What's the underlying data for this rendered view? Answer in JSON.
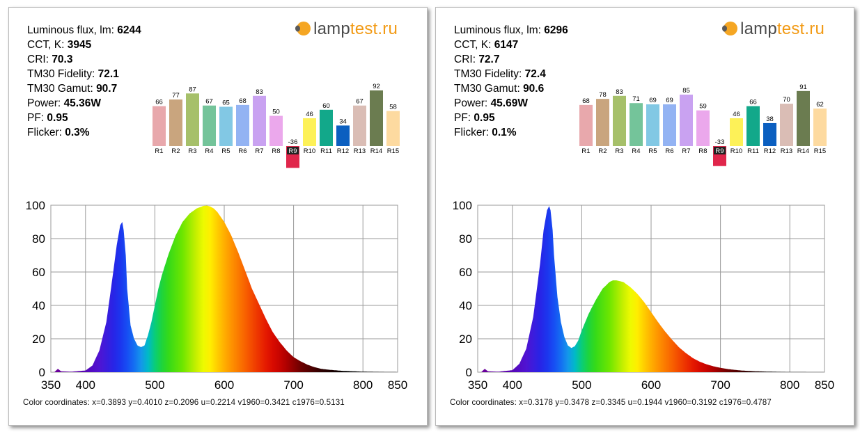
{
  "logo": {
    "part1": "lamp",
    "part2": "test.ru",
    "lamp_color": "#f5a623",
    "text_color": "#4a4a4a",
    "accent": "#f29a14"
  },
  "cri_labels": [
    "R1",
    "R2",
    "R3",
    "R4",
    "R5",
    "R6",
    "R7",
    "R8",
    "R9",
    "R10",
    "R11",
    "R12",
    "R13",
    "R14",
    "R15"
  ],
  "cri_colors": [
    "#e8a8ac",
    "#c9a57e",
    "#a6c06a",
    "#74c49a",
    "#82c8e4",
    "#93b3f3",
    "#c9a2f1",
    "#eba8ec",
    "#e0264b",
    "#fdf158",
    "#12a88a",
    "#0b5fc0",
    "#dabdb5",
    "#6b7c50",
    "#fddaa0"
  ],
  "panels": [
    {
      "stats": [
        {
          "label": "Luminous flux, lm: ",
          "value": "6244"
        },
        {
          "label": "CCT, K: ",
          "value": "3945"
        },
        {
          "label": "CRI: ",
          "value": "70.3"
        },
        {
          "label": "TM30 Fidelity: ",
          "value": "72.1"
        },
        {
          "label": "TM30 Gamut: ",
          "value": "90.7"
        },
        {
          "label": "Power:  ",
          "value": "45.36W"
        },
        {
          "label": "PF:  ",
          "value": "0.95"
        },
        {
          "label": "Flicker:  ",
          "value": "0.3%"
        }
      ],
      "cri_values": [
        66,
        77,
        87,
        67,
        65,
        68,
        83,
        50,
        -36,
        46,
        60,
        34,
        67,
        92,
        58
      ],
      "coordinates": "Color coordinates: x=0.3893 y=0.4010 z=0.2096 u=0.2214 v1960=0.3421 c1976=0.5131",
      "chart_data": {
        "type": "area",
        "xlim": [
          350,
          850
        ],
        "ylim": [
          0,
          100
        ],
        "xticks": [
          350,
          400,
          500,
          600,
          700,
          800,
          850
        ],
        "yticks": [
          0,
          20,
          40,
          60,
          80,
          100
        ],
        "grid": true,
        "x": [
          355,
          360,
          365,
          380,
          400,
          410,
          420,
          430,
          440,
          445,
          450,
          453,
          455,
          458,
          460,
          465,
          470,
          475,
          480,
          485,
          490,
          495,
          500,
          505,
          510,
          520,
          530,
          540,
          550,
          560,
          570,
          575,
          580,
          585,
          590,
          600,
          610,
          620,
          630,
          640,
          650,
          660,
          670,
          680,
          690,
          700,
          710,
          720,
          730,
          740,
          750,
          770,
          800,
          850
        ],
        "y": [
          0,
          2,
          0.5,
          0.3,
          1,
          4,
          13,
          30,
          60,
          76,
          88,
          90,
          85,
          70,
          50,
          28,
          20,
          16,
          15,
          16,
          22,
          30,
          40,
          50,
          58,
          71,
          82,
          90,
          95,
          98,
          99.6,
          99.8,
          99.2,
          98,
          96,
          90,
          82,
          72,
          61,
          50,
          41,
          32,
          24,
          18,
          13,
          9,
          6.5,
          4.5,
          3,
          2,
          1.5,
          0.8,
          0.3,
          0.05
        ]
      }
    },
    {
      "stats": [
        {
          "label": "Luminous flux, lm: ",
          "value": "6296"
        },
        {
          "label": "CCT, K: ",
          "value": "6147"
        },
        {
          "label": "CRI: ",
          "value": "72.7"
        },
        {
          "label": "TM30 Fidelity: ",
          "value": "72.4"
        },
        {
          "label": "TM30 Gamut: ",
          "value": "90.6"
        },
        {
          "label": "Power:  ",
          "value": "45.69W"
        },
        {
          "label": "PF:  ",
          "value": "0.95"
        },
        {
          "label": "Flicker:  ",
          "value": "0.1%"
        }
      ],
      "cri_values": [
        68,
        78,
        83,
        71,
        69,
        69,
        85,
        59,
        -33,
        46,
        66,
        38,
        70,
        91,
        62
      ],
      "coordinates": "Color coordinates: x=0.3178 y=0.3478 z=0.3345 u=0.1944 v1960=0.3192 c1976=0.4787",
      "chart_data": {
        "type": "area",
        "xlim": [
          350,
          850
        ],
        "ylim": [
          0,
          100
        ],
        "xticks": [
          350,
          400,
          500,
          600,
          700,
          800,
          850
        ],
        "yticks": [
          0,
          20,
          40,
          60,
          80,
          100
        ],
        "grid": true,
        "x": [
          355,
          360,
          365,
          380,
          400,
          410,
          420,
          430,
          440,
          445,
          450,
          453,
          455,
          458,
          460,
          465,
          470,
          475,
          480,
          485,
          490,
          495,
          500,
          510,
          520,
          530,
          540,
          545,
          550,
          555,
          560,
          570,
          580,
          590,
          600,
          610,
          620,
          630,
          640,
          650,
          660,
          670,
          680,
          690,
          700,
          710,
          720,
          730,
          740,
          750,
          770,
          800,
          850
        ],
        "y": [
          0,
          2,
          0.5,
          0.3,
          1.2,
          5,
          14,
          33,
          65,
          85,
          97,
          99.5,
          97,
          85,
          70,
          45,
          30,
          21,
          16,
          14.5,
          15.5,
          19,
          25,
          35,
          43,
          50,
          54,
          55,
          55,
          54.5,
          54,
          51,
          47,
          42,
          36,
          30,
          24.5,
          19.5,
          15,
          11.5,
          8.5,
          6.3,
          4.7,
          3.5,
          2.6,
          1.9,
          1.4,
          1.0,
          0.75,
          0.55,
          0.3,
          0.1,
          0.02
        ]
      }
    }
  ]
}
